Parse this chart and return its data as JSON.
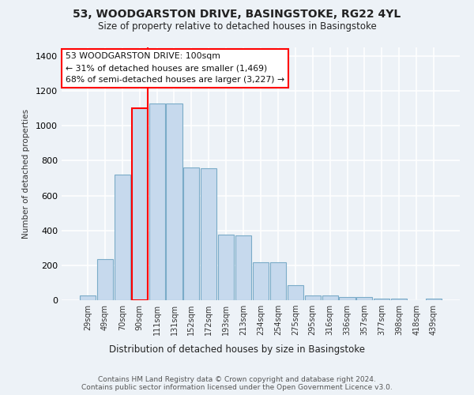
{
  "title_line1": "53, WOODGARSTON DRIVE, BASINGSTOKE, RG22 4YL",
  "title_line2": "Size of property relative to detached houses in Basingstoke",
  "xlabel": "Distribution of detached houses by size in Basingstoke",
  "ylabel": "Number of detached properties",
  "footnote1": "Contains HM Land Registry data © Crown copyright and database right 2024.",
  "footnote2": "Contains public sector information licensed under the Open Government Licence v3.0.",
  "categories": [
    "29sqm",
    "49sqm",
    "70sqm",
    "90sqm",
    "111sqm",
    "131sqm",
    "152sqm",
    "172sqm",
    "193sqm",
    "213sqm",
    "234sqm",
    "254sqm",
    "275sqm",
    "295sqm",
    "316sqm",
    "336sqm",
    "357sqm",
    "377sqm",
    "398sqm",
    "418sqm",
    "439sqm"
  ],
  "values": [
    28,
    235,
    720,
    1100,
    1130,
    1130,
    760,
    755,
    375,
    370,
    218,
    218,
    88,
    28,
    27,
    17,
    17,
    10,
    10,
    0,
    9
  ],
  "bar_color": "#c6d9ed",
  "bar_edge_color": "#7aabc8",
  "red_line_after_index": 3,
  "annotation_text": "53 WOODGARSTON DRIVE: 100sqm\n← 31% of detached houses are smaller (1,469)\n68% of semi-detached houses are larger (3,227) →",
  "ylim": [
    0,
    1450
  ],
  "yticks": [
    0,
    200,
    400,
    600,
    800,
    1000,
    1200,
    1400
  ],
  "bg_color": "#edf2f7",
  "grid_color": "#ffffff"
}
